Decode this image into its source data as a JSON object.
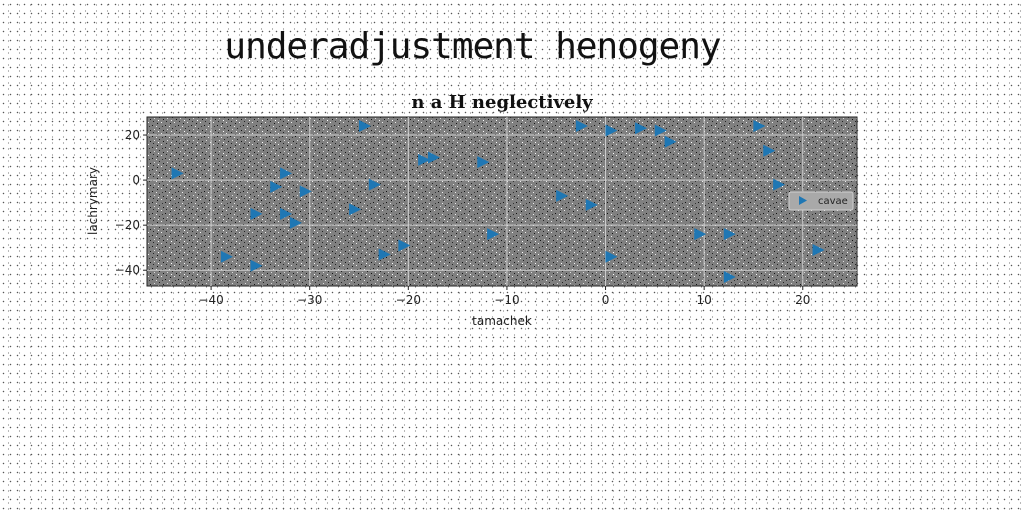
{
  "suptitle": "underadjustment henogeny",
  "chart_data": {
    "type": "scatter",
    "title": "n a H neglectively",
    "xlabel": "tamachek",
    "ylabel": "lachrymary",
    "xlim": [
      -46.5,
      25.5
    ],
    "ylim": [
      -47,
      28
    ],
    "xticks": [
      -40,
      -30,
      -20,
      -10,
      0,
      10,
      20
    ],
    "yticks": [
      -40,
      -20,
      0,
      20
    ],
    "grid": true,
    "legend_position": "right",
    "series": [
      {
        "name": "cavae",
        "marker": "triangle-right",
        "color": "#1f77b4",
        "x": [
          -43.5,
          -38.5,
          -35.5,
          -35.5,
          -33.5,
          -32.5,
          -32.5,
          -31.5,
          -30.5,
          -25.5,
          -24.5,
          -23.5,
          -22.5,
          -20.5,
          -18.5,
          -17.5,
          -12.5,
          -11.5,
          -4.5,
          -1.5,
          -2.5,
          0.5,
          0.5,
          3.5,
          5.5,
          6.5,
          9.5,
          12.5,
          12.5,
          15.5,
          16.5,
          17.5,
          21.5
        ],
        "y": [
          3,
          -34,
          -38,
          -15,
          -3,
          3,
          -15,
          -19,
          -5,
          -13,
          24,
          -2,
          -33,
          -29,
          9,
          10,
          8,
          -24,
          -7,
          -11,
          24,
          22,
          -34,
          23,
          22,
          17,
          -24,
          -24,
          -43,
          24,
          13,
          -2,
          -31
        ]
      }
    ]
  }
}
